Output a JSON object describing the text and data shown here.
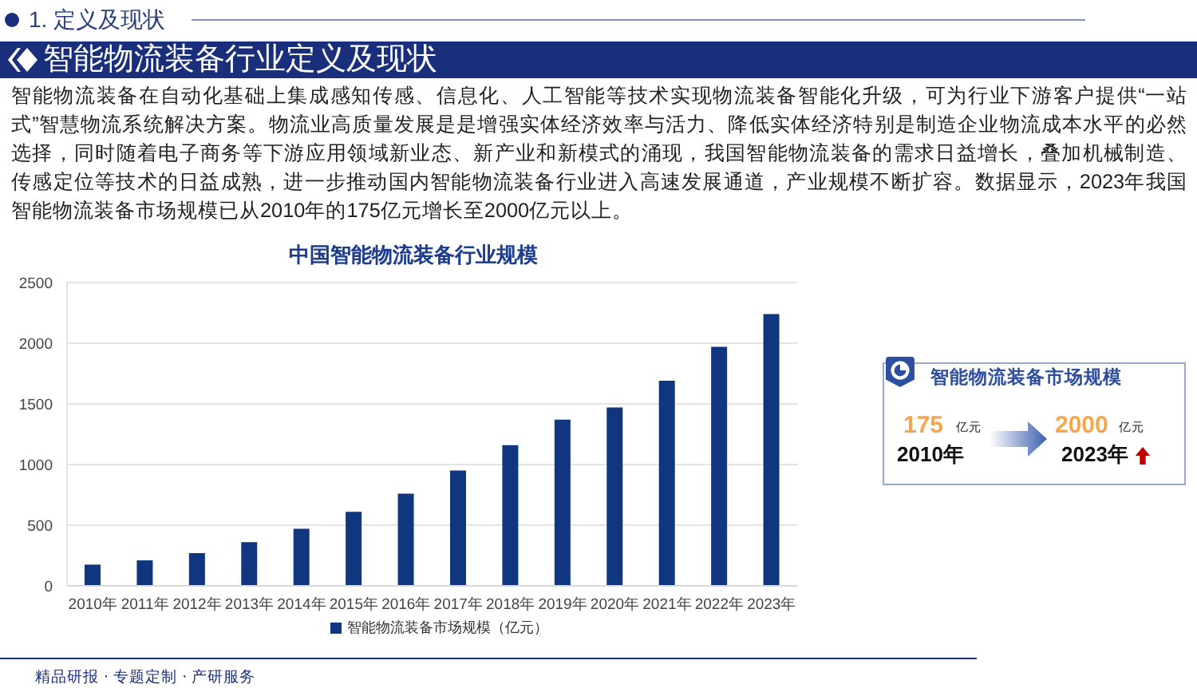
{
  "chart_data": [
    {
      "type": "bar",
      "title": "中国智能物流装备行业规模",
      "categories": [
        "2010年",
        "2011年",
        "2012年",
        "2013年",
        "2014年",
        "2015年",
        "2016年",
        "2017年",
        "2018年",
        "2019年",
        "2020年",
        "2021年",
        "2022年",
        "2023年"
      ],
      "series": [
        {
          "name": "智能物流装备市场规模（亿元）",
          "color": "#10367f",
          "values": [
            175,
            210,
            270,
            360,
            470,
            610,
            760,
            950,
            1160,
            1370,
            1470,
            1690,
            1970,
            2240
          ]
        }
      ],
      "ylim": [
        0,
        2500
      ],
      "yticks": [
        0,
        500,
        1000,
        1500,
        2000,
        2500
      ],
      "grid": "y",
      "legend": "bottom",
      "annotations": [
        "1. 定义及现状",
        "智能物流装备行业定义及现状",
        "智能物流装备在自动化基础上集成感知传感、信息化、人工智能等技术实现物流装备智能化升级，可为行业下游客户提供“一站式”智慧物流系统解决方案。物流业高质量发展是是增强实体经济效率与活力、降低实体经济特别是制造企业物流成本水平的必然选择，同时随着电子商务等下游应用领域新业态、新产业和新模式的涌现，我国智能物流装备的需求日益增长，叠加机械制造、传感定位等技术的日益成熟，进一步推动国内智能物流装备行业进入高速发展通道，产业规模不断扩容。数据显示，2023年我国智能物流装备市场规模已从2010年的175亿元增长至2000亿元以上。",
        "精品研报 · 专题定制 · 产研服务"
      ]
    },
    {
      "type": "other",
      "title": "智能物流装备市场规模",
      "annotations": [
        "175",
        "亿元",
        "2010年",
        "2000",
        "亿元",
        "2023年"
      ]
    }
  ]
}
